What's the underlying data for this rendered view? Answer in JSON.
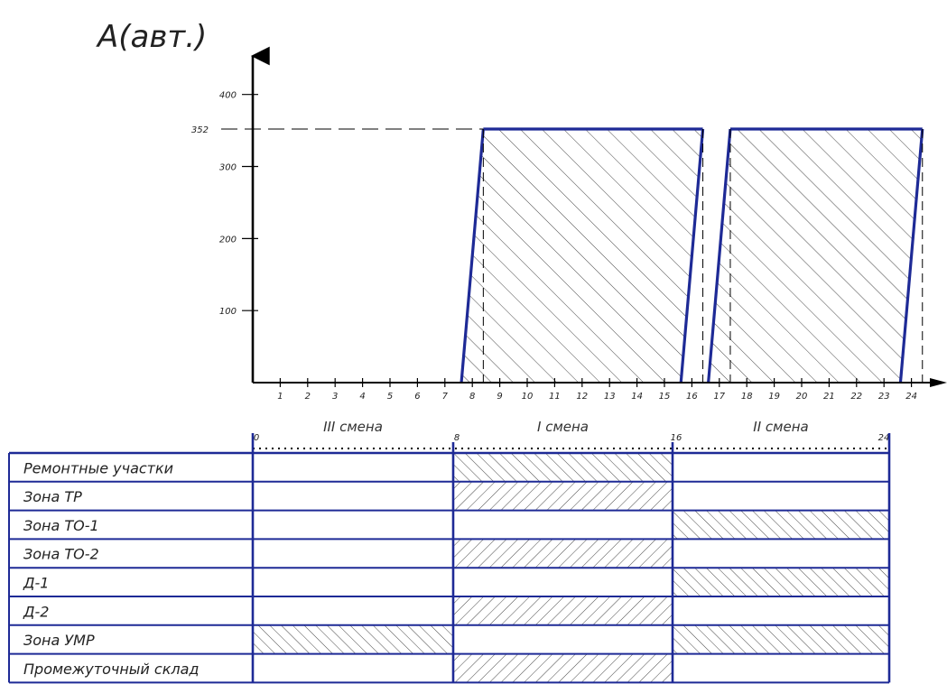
{
  "chart_data": {
    "type": "area",
    "ylabel": "A(авт.)",
    "y_ticks": [
      "100",
      "200",
      "300",
      "400"
    ],
    "y_tick_values": [
      100,
      200,
      300,
      400
    ],
    "peak_label": "352",
    "peak_value": 352,
    "x_ticks": [
      "1",
      "2",
      "3",
      "4",
      "5",
      "6",
      "7",
      "8",
      "9",
      "10",
      "11",
      "12",
      "13",
      "14",
      "15",
      "16",
      "17",
      "18",
      "19",
      "20",
      "21",
      "22",
      "23",
      "24"
    ],
    "xlim": [
      0,
      25
    ],
    "ylim": [
      0,
      430
    ],
    "blocks": [
      {
        "rise_start": 7.6,
        "rise_end": 8.4,
        "fall_start": 15.6,
        "fall_end": 16.4,
        "value": 352
      },
      {
        "rise_start": 16.6,
        "rise_end": 17.4,
        "fall_start": 23.6,
        "fall_end": 24.4,
        "value": 352
      }
    ]
  },
  "schedule": {
    "hour_marks": [
      "0",
      "8",
      "16",
      "24"
    ],
    "hour_values": [
      0,
      8,
      16,
      24
    ],
    "shifts": [
      {
        "label": "III смена",
        "start": 0,
        "end": 8
      },
      {
        "label": "I смена",
        "start": 8,
        "end": 16
      },
      {
        "label": "II смена",
        "start": 16,
        "end": 24
      }
    ],
    "rows": [
      {
        "label": "Ремонтные участки",
        "active": [
          1
        ],
        "hatch": "fwd"
      },
      {
        "label": "Зона ТР",
        "active": [
          1
        ],
        "hatch": "back"
      },
      {
        "label": "Зона ТО-1",
        "active": [
          2
        ],
        "hatch": "fwd"
      },
      {
        "label": "Зона ТО-2",
        "active": [
          1
        ],
        "hatch": "back"
      },
      {
        "label": "Д-1",
        "active": [
          2
        ],
        "hatch": "fwd"
      },
      {
        "label": "Д-2",
        "active": [
          1
        ],
        "hatch": "back"
      },
      {
        "label": "Зона УМР",
        "active": [
          0,
          2
        ],
        "hatch": "fwd"
      },
      {
        "label": "Промежуточный склад",
        "active": [
          1
        ],
        "hatch": "back"
      }
    ]
  },
  "colors": {
    "line": "#1e2a96",
    "text": "#222222",
    "hatch": "#333333",
    "axis": "#000000"
  }
}
